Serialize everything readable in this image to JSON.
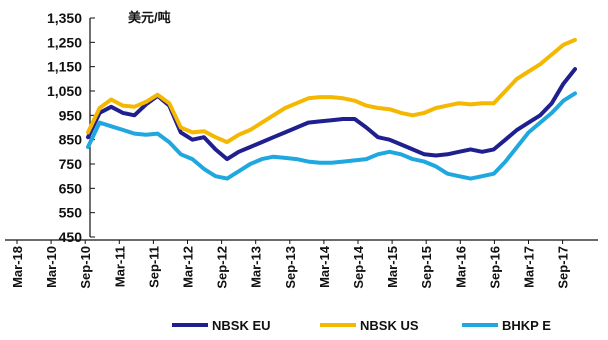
{
  "chart_data": {
    "type": "line",
    "unit_label": "美元/吨",
    "y_ticks": [
      "1,350",
      "1,250",
      "1,150",
      "1,050",
      "950",
      "850",
      "750",
      "650",
      "550",
      "450"
    ],
    "x_ticks": [
      "Mar-18",
      "Mar-10",
      "Sep-10",
      "Mar-11",
      "Sep-11",
      "Mar-12",
      "Sep-12",
      "Mar-13",
      "Sep-13",
      "Mar-14",
      "Sep-14",
      "Mar-15",
      "Sep-15",
      "Mar-16",
      "Sep-16",
      "Mar-17",
      "Sep-17"
    ],
    "ylim": [
      450,
      1350
    ],
    "x": [
      "Mar-10",
      "May-10",
      "Jul-10",
      "Sep-10",
      "Nov-10",
      "Jan-11",
      "Mar-11",
      "May-11",
      "Jul-11",
      "Sep-11",
      "Nov-11",
      "Jan-12",
      "Mar-12",
      "May-12",
      "Jul-12",
      "Sep-12",
      "Nov-12",
      "Jan-13",
      "Mar-13",
      "May-13",
      "Jul-13",
      "Sep-13",
      "Nov-13",
      "Jan-14",
      "Mar-14",
      "May-14",
      "Jul-14",
      "Sep-14",
      "Nov-14",
      "Jan-15",
      "Mar-15",
      "May-15",
      "Jul-15",
      "Sep-15",
      "Nov-15",
      "Jan-16",
      "Mar-16",
      "May-16",
      "Jul-16",
      "Sep-16",
      "Nov-16",
      "Jan-17",
      "Mar-17"
    ],
    "series": [
      {
        "name": "NBSK EU",
        "color": "#1f1f8f",
        "values": [
          860,
          960,
          985,
          960,
          950,
          995,
          1030,
          990,
          880,
          850,
          860,
          810,
          770,
          800,
          820,
          840,
          860,
          880,
          900,
          920,
          925,
          930,
          935,
          935,
          900,
          860,
          850,
          830,
          810,
          790,
          785,
          790,
          800,
          810,
          800,
          810,
          850,
          890,
          920,
          950,
          1000,
          1080,
          1140
        ]
      },
      {
        "name": "NBSK US",
        "color": "#f5b800",
        "values": [
          880,
          980,
          1015,
          990,
          985,
          1005,
          1035,
          1000,
          900,
          880,
          885,
          860,
          840,
          870,
          890,
          920,
          950,
          980,
          1000,
          1020,
          1025,
          1025,
          1020,
          1010,
          990,
          980,
          975,
          960,
          950,
          960,
          980,
          990,
          1000,
          995,
          1000,
          1000,
          1050,
          1100,
          1130,
          1160,
          1200,
          1240,
          1260
        ]
      },
      {
        "name": "BHKP E",
        "color": "#1fa8e0",
        "values": [
          820,
          920,
          905,
          890,
          875,
          870,
          875,
          840,
          790,
          770,
          730,
          700,
          690,
          720,
          750,
          770,
          780,
          775,
          770,
          760,
          755,
          755,
          760,
          765,
          770,
          790,
          800,
          790,
          770,
          760,
          740,
          710,
          700,
          690,
          700,
          710,
          760,
          820,
          880,
          920,
          960,
          1010,
          1040
        ]
      }
    ]
  }
}
